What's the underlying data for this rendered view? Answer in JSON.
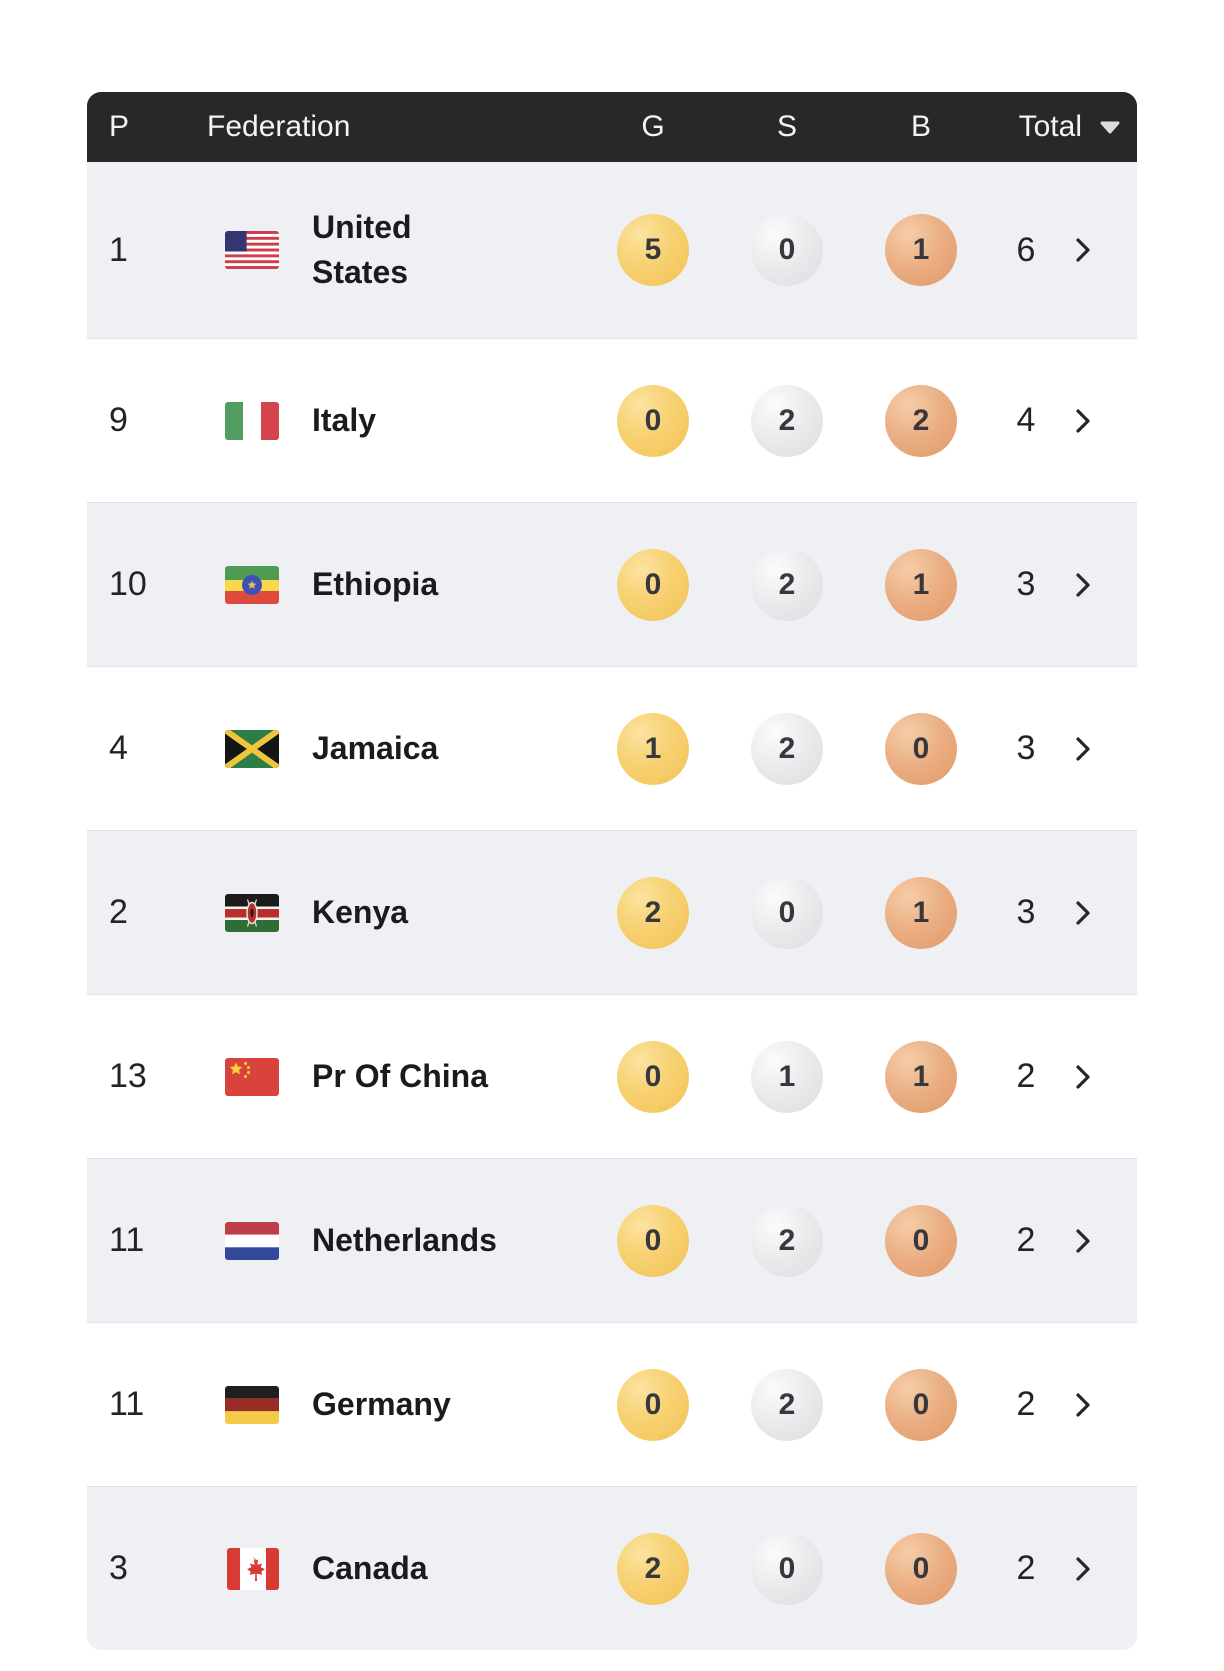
{
  "table": {
    "headers": {
      "position": "P",
      "federation": "Federation",
      "gold": "G",
      "silver": "S",
      "bronze": "B",
      "total": "Total"
    },
    "sort": {
      "column": "Total",
      "direction": "descending",
      "icon": "sort-desc-arrow"
    },
    "row_action_icon": "chevron-right",
    "rows": [
      {
        "position": "1",
        "federation": "United States",
        "flag": "us",
        "gold": "5",
        "silver": "0",
        "bronze": "1",
        "total": "6"
      },
      {
        "position": "9",
        "federation": "Italy",
        "flag": "it",
        "gold": "0",
        "silver": "2",
        "bronze": "2",
        "total": "4"
      },
      {
        "position": "10",
        "federation": "Ethiopia",
        "flag": "et",
        "gold": "0",
        "silver": "2",
        "bronze": "1",
        "total": "3"
      },
      {
        "position": "4",
        "federation": "Jamaica",
        "flag": "jm",
        "gold": "1",
        "silver": "2",
        "bronze": "0",
        "total": "3"
      },
      {
        "position": "2",
        "federation": "Kenya",
        "flag": "ke",
        "gold": "2",
        "silver": "0",
        "bronze": "1",
        "total": "3"
      },
      {
        "position": "13",
        "federation": "Pr Of China",
        "flag": "cn",
        "gold": "0",
        "silver": "1",
        "bronze": "1",
        "total": "2"
      },
      {
        "position": "11",
        "federation": "Netherlands",
        "flag": "nl",
        "gold": "0",
        "silver": "2",
        "bronze": "0",
        "total": "2"
      },
      {
        "position": "11",
        "federation": "Germany",
        "flag": "de",
        "gold": "0",
        "silver": "2",
        "bronze": "0",
        "total": "2"
      },
      {
        "position": "3",
        "federation": "Canada",
        "flag": "ca",
        "gold": "2",
        "silver": "0",
        "bronze": "0",
        "total": "2"
      }
    ]
  },
  "colors": {
    "header_bg": "#292827",
    "row_alt_bg": "#eff0f3",
    "gold": "#f5c966",
    "silver": "#e6e6e9",
    "bronze": "#e5a677",
    "text": "#1c1c1e"
  }
}
